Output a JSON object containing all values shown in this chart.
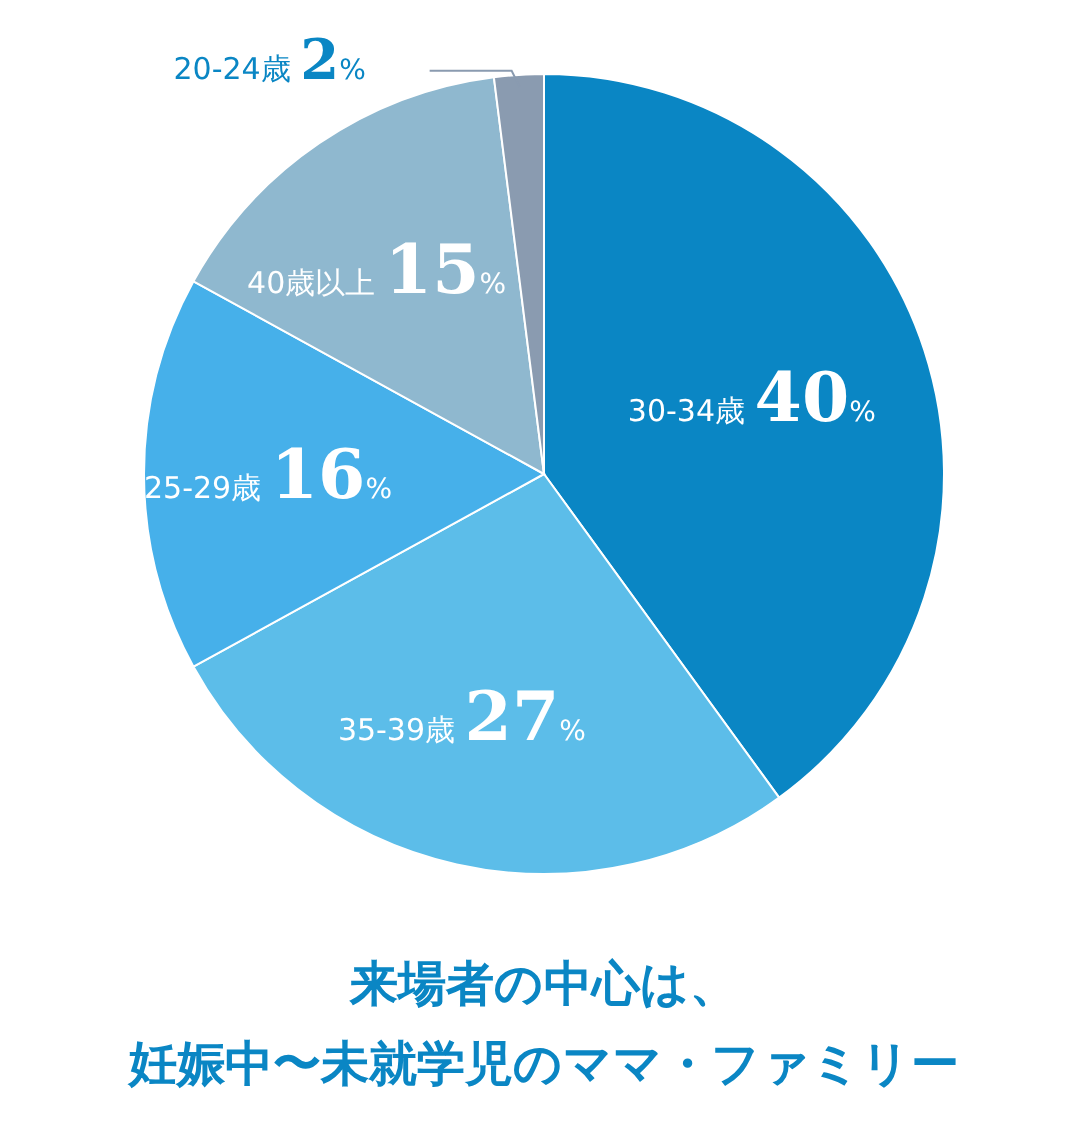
{
  "chart_data": {
    "type": "pie",
    "title": "来場者の中心は、",
    "subtitle": "妊娠中〜未就学児のママ・ファミリー",
    "categories": [
      "30-34歳",
      "35-39歳",
      "25-29歳",
      "40歳以上",
      "20-24歳"
    ],
    "values": [
      40,
      27,
      16,
      15,
      2
    ],
    "value_labels": [
      "40%",
      "27%",
      "16%",
      "15%",
      "2%"
    ],
    "colors": [
      "#0a86c4",
      "#5cbde9",
      "#46b0ea",
      "#8fb8cf",
      "#8a9bb0"
    ]
  }
}
